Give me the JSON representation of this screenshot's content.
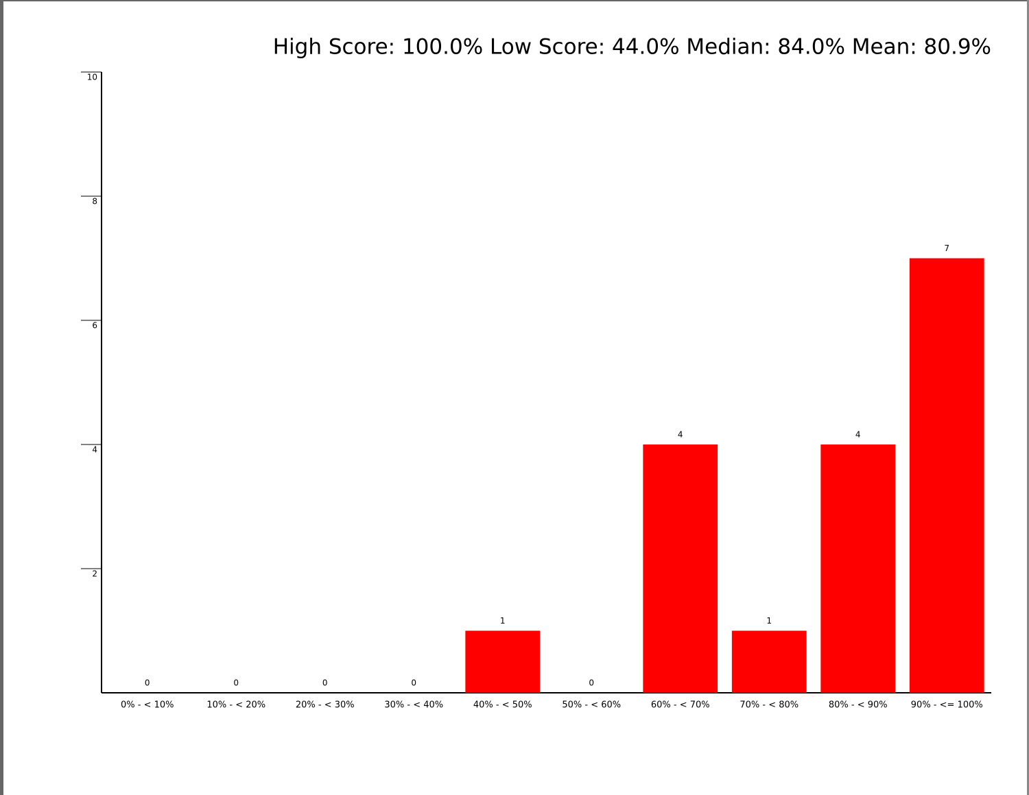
{
  "chart_data": {
    "type": "bar",
    "title": "High Score: 100.0%  Low Score: 44.0%  Median: 84.0%  Mean: 80.9%",
    "categories": [
      "0% - < 10%",
      "10% - < 20%",
      "20% - < 30%",
      "30% - < 40%",
      "40% - < 50%",
      "50% - < 60%",
      "60% - < 70%",
      "70% - < 80%",
      "80% - < 90%",
      "90% - <= 100%"
    ],
    "values": [
      0,
      0,
      0,
      0,
      1,
      0,
      4,
      1,
      4,
      7
    ],
    "color": "#ff0000",
    "ylim": [
      0,
      10
    ],
    "yticks": [
      2,
      4,
      6,
      8,
      10
    ]
  }
}
